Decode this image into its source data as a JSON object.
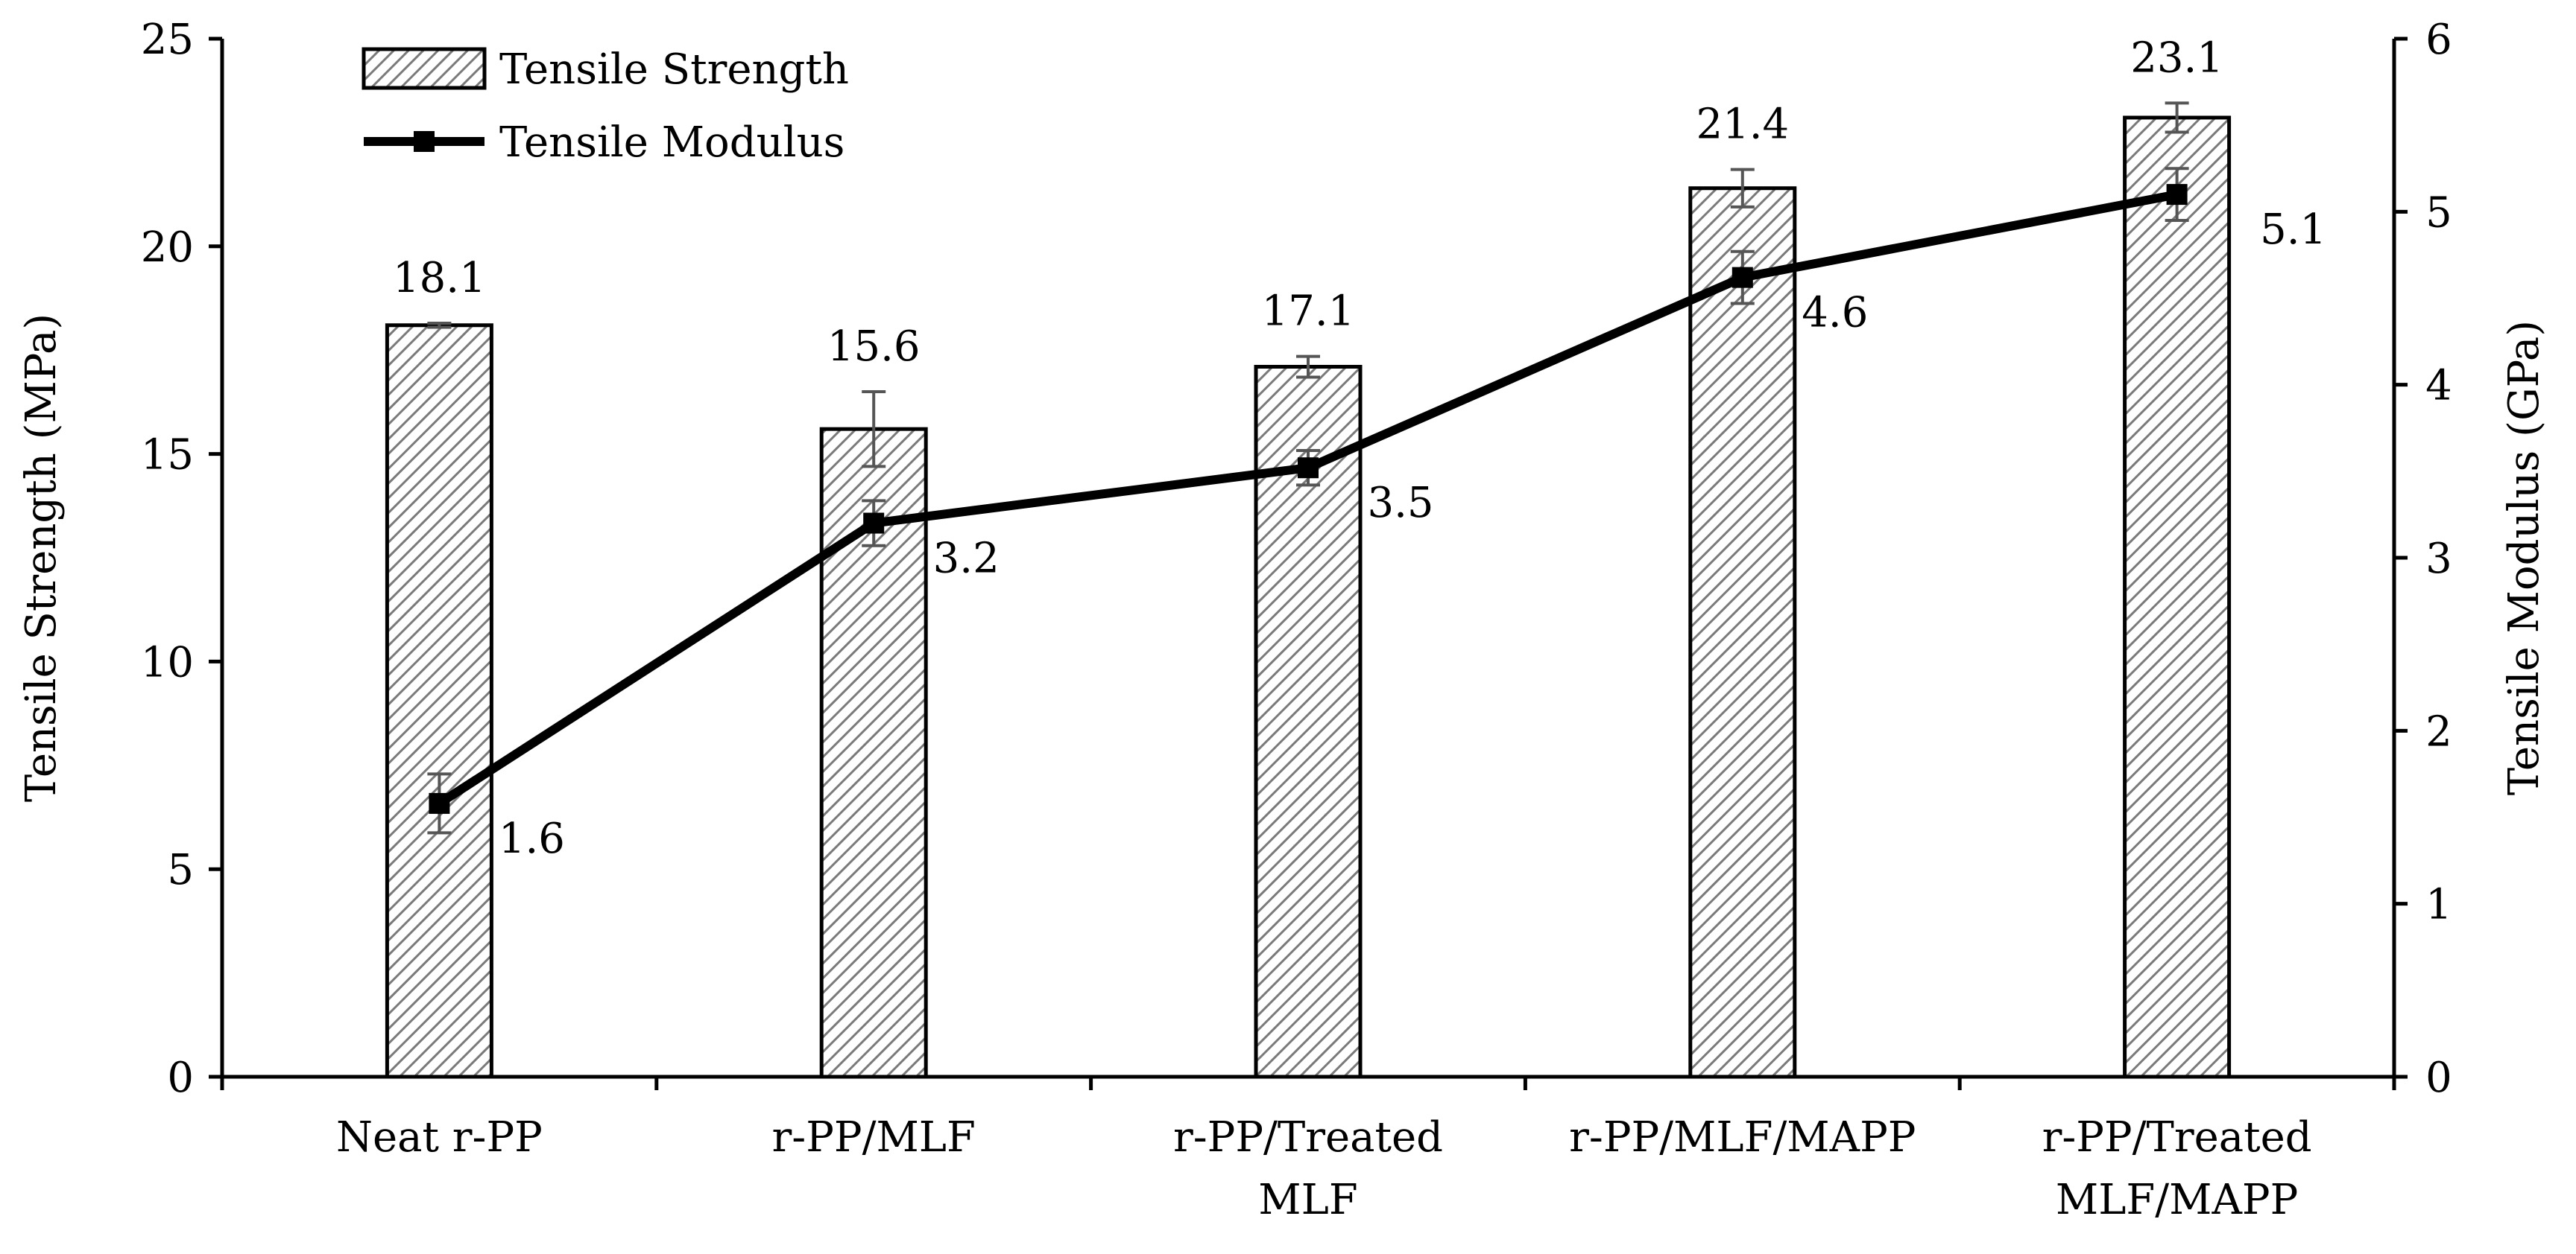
{
  "chart_data": {
    "type": "bar",
    "title": "",
    "categories": [
      [
        "Neat r-PP"
      ],
      [
        "r-PP/MLF"
      ],
      [
        "r-PP/Treated",
        "MLF"
      ],
      [
        "r-PP/MLF/MAPP"
      ],
      [
        "r-PP/Treated",
        "MLF/MAPP"
      ]
    ],
    "series": [
      {
        "name": "Tensile Strength",
        "type": "bar",
        "axis": "left",
        "values": [
          18.1,
          15.6,
          17.1,
          21.4,
          23.1
        ],
        "labels": [
          "18.1",
          "15.6",
          "17.1",
          "21.4",
          "23.1"
        ],
        "errors": [
          0.05,
          0.9,
          0.25,
          0.45,
          0.35
        ]
      },
      {
        "name": "Tensile Modulus",
        "type": "line",
        "axis": "right",
        "values": [
          1.58,
          3.2,
          3.52,
          4.62,
          5.1
        ],
        "labels": [
          "1.6",
          "3.2",
          "3.5",
          "4.6",
          "5.1"
        ],
        "errors": [
          0.17,
          0.13,
          0.1,
          0.15,
          0.15
        ]
      }
    ],
    "ylabel": "Tensile Strength (MPa)",
    "ylabel_right": "Tensile Modulus (GPa)",
    "ylim": [
      0,
      25
    ],
    "ylim_right": [
      0,
      6
    ],
    "yticks": [
      "0",
      "5",
      "10",
      "15",
      "20",
      "25"
    ],
    "yticks_right": [
      "0",
      "1",
      "2",
      "3",
      "4",
      "5",
      "6"
    ],
    "legend_position": "top-left",
    "grid": false,
    "colors": {
      "line": "#000000",
      "bar_stroke": "#000000",
      "hatch": "#7a7a7a",
      "error": "#555555"
    }
  }
}
